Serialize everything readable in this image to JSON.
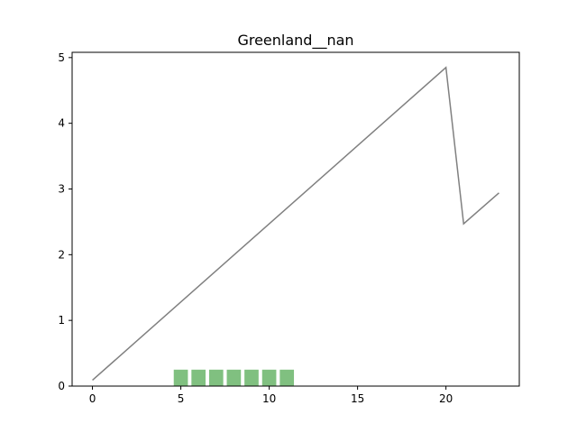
{
  "chart_data": {
    "type": "line",
    "title": "Greenland__nan",
    "xlabel": "",
    "ylabel": "",
    "xlim": [
      -1.15,
      24.15
    ],
    "ylim": [
      0,
      5.08
    ],
    "grid": false,
    "xticks": [
      0,
      5,
      10,
      15,
      20
    ],
    "yticks": [
      0,
      1,
      2,
      3,
      4,
      5
    ],
    "series": [
      {
        "kind": "line",
        "color": "#808080",
        "points": [
          [
            0,
            0.09
          ],
          [
            20,
            4.85
          ],
          [
            21,
            2.47
          ],
          [
            23,
            2.94
          ]
        ]
      },
      {
        "kind": "bar",
        "color": "#80c080",
        "x": [
          5,
          6,
          7,
          8,
          9,
          10,
          11
        ],
        "values": [
          0.25,
          0.25,
          0.25,
          0.25,
          0.25,
          0.25,
          0.25
        ],
        "bar_width": 0.8
      }
    ]
  }
}
